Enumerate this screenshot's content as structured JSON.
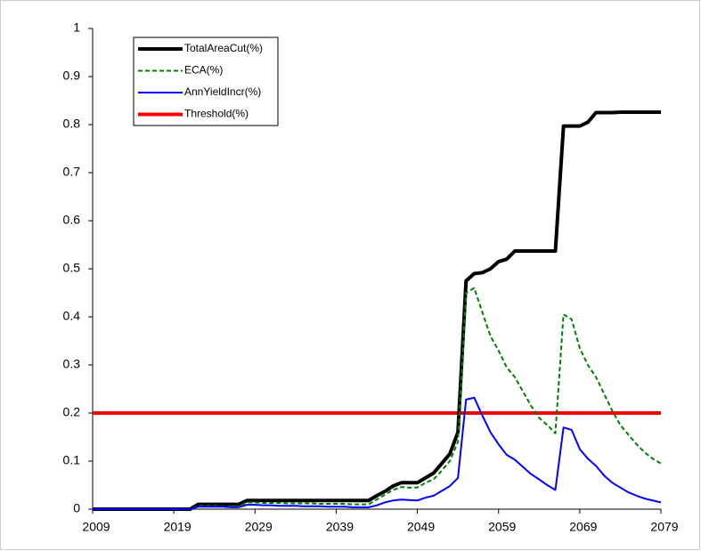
{
  "chart_data": {
    "type": "line",
    "x": [
      2009,
      2010,
      2011,
      2012,
      2013,
      2014,
      2015,
      2016,
      2017,
      2018,
      2019,
      2020,
      2021,
      2022,
      2023,
      2024,
      2025,
      2026,
      2027,
      2028,
      2029,
      2030,
      2031,
      2032,
      2033,
      2034,
      2035,
      2036,
      2037,
      2038,
      2039,
      2040,
      2041,
      2042,
      2043,
      2044,
      2045,
      2046,
      2047,
      2048,
      2049,
      2050,
      2051,
      2052,
      2053,
      2054,
      2055,
      2056,
      2057,
      2058,
      2059,
      2060,
      2061,
      2062,
      2063,
      2064,
      2065,
      2066,
      2067,
      2068,
      2069,
      2070,
      2071,
      2072,
      2073,
      2074,
      2075,
      2076,
      2077,
      2078,
      2079
    ],
    "series": [
      {
        "name": "TotalAreaCut(%)",
        "color": "#000000",
        "width": 4,
        "dash": false,
        "values": [
          0,
          0,
          0,
          0,
          0,
          0,
          0,
          0,
          0,
          0,
          0,
          0,
          0,
          0.01,
          0.01,
          0.01,
          0.01,
          0.01,
          0.01,
          0.018,
          0.018,
          0.018,
          0.018,
          0.018,
          0.018,
          0.018,
          0.018,
          0.018,
          0.018,
          0.018,
          0.018,
          0.018,
          0.018,
          0.018,
          0.018,
          0.028,
          0.037,
          0.048,
          0.055,
          0.055,
          0.055,
          0.065,
          0.075,
          0.095,
          0.115,
          0.16,
          0.475,
          0.49,
          0.492,
          0.5,
          0.515,
          0.52,
          0.537,
          0.537,
          0.537,
          0.537,
          0.537,
          0.537,
          0.797,
          0.797,
          0.797,
          0.805,
          0.825,
          0.825,
          0.825,
          0.826,
          0.826,
          0.826,
          0.826,
          0.826,
          0.826
        ]
      },
      {
        "name": "ECA(%)",
        "color": "#008000",
        "width": 2,
        "dash": true,
        "values": [
          0,
          0,
          0,
          0,
          0,
          0,
          0,
          0,
          0,
          0,
          0,
          0,
          0,
          0.007,
          0.007,
          0.007,
          0.006,
          0.006,
          0.006,
          0.014,
          0.014,
          0.013,
          0.013,
          0.013,
          0.012,
          0.012,
          0.012,
          0.012,
          0.011,
          0.011,
          0.011,
          0.011,
          0.01,
          0.01,
          0.01,
          0.02,
          0.03,
          0.04,
          0.046,
          0.045,
          0.045,
          0.055,
          0.062,
          0.08,
          0.1,
          0.14,
          0.45,
          0.46,
          0.41,
          0.36,
          0.33,
          0.295,
          0.275,
          0.245,
          0.215,
          0.19,
          0.175,
          0.158,
          0.405,
          0.395,
          0.335,
          0.3,
          0.275,
          0.24,
          0.205,
          0.175,
          0.155,
          0.135,
          0.118,
          0.105,
          0.095
        ]
      },
      {
        "name": "AnnYieldIncr(%)",
        "color": "#0000ff",
        "width": 2,
        "dash": false,
        "values": [
          0,
          0,
          0,
          0,
          0,
          0,
          0,
          0,
          0,
          0,
          0,
          0,
          0,
          0.005,
          0.005,
          0.005,
          0.005,
          0.004,
          0.004,
          0.009,
          0.009,
          0.008,
          0.008,
          0.007,
          0.007,
          0.007,
          0.006,
          0.006,
          0.006,
          0.005,
          0.005,
          0.005,
          0.004,
          0.004,
          0.004,
          0.008,
          0.014,
          0.018,
          0.02,
          0.019,
          0.018,
          0.024,
          0.028,
          0.038,
          0.048,
          0.065,
          0.228,
          0.232,
          0.195,
          0.16,
          0.135,
          0.113,
          0.103,
          0.088,
          0.073,
          0.062,
          0.05,
          0.04,
          0.17,
          0.165,
          0.125,
          0.105,
          0.09,
          0.07,
          0.055,
          0.045,
          0.035,
          0.028,
          0.022,
          0.018,
          0.014
        ]
      },
      {
        "name": "Threshold(%)",
        "color": "#ff0000",
        "width": 4,
        "dash": false,
        "values": [
          0.2,
          0.2,
          0.2,
          0.2,
          0.2,
          0.2,
          0.2,
          0.2,
          0.2,
          0.2,
          0.2,
          0.2,
          0.2,
          0.2,
          0.2,
          0.2,
          0.2,
          0.2,
          0.2,
          0.2,
          0.2,
          0.2,
          0.2,
          0.2,
          0.2,
          0.2,
          0.2,
          0.2,
          0.2,
          0.2,
          0.2,
          0.2,
          0.2,
          0.2,
          0.2,
          0.2,
          0.2,
          0.2,
          0.2,
          0.2,
          0.2,
          0.2,
          0.2,
          0.2,
          0.2,
          0.2,
          0.2,
          0.2,
          0.2,
          0.2,
          0.2,
          0.2,
          0.2,
          0.2,
          0.2,
          0.2,
          0.2,
          0.2,
          0.2,
          0.2,
          0.2,
          0.2,
          0.2,
          0.2,
          0.2,
          0.2,
          0.2,
          0.2,
          0.2,
          0.2,
          0.2
        ]
      }
    ],
    "xlim": [
      2009,
      2079
    ],
    "xticks": [
      2009,
      2019,
      2029,
      2039,
      2049,
      2059,
      2069,
      2079
    ],
    "ylim": [
      0,
      1
    ],
    "yticks": [
      0,
      0.1,
      0.2,
      0.3,
      0.4,
      0.5,
      0.6,
      0.7,
      0.8,
      0.9,
      1
    ],
    "grid": false,
    "legend": "top-left"
  }
}
